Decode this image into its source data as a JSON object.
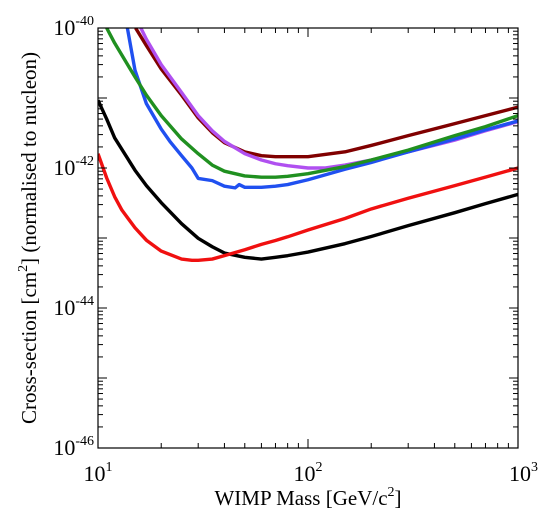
{
  "chart_data": {
    "type": "line",
    "title": "",
    "xlabel_parts": [
      "WIMP Mass [GeV/c",
      "2",
      "]"
    ],
    "ylabel_parts": [
      "Cross-section [cm",
      "2",
      "] (normalised to nucleon)"
    ],
    "x_scale": "log",
    "y_scale": "log",
    "xlim": [
      10,
      1000
    ],
    "ylim": [
      1e-46,
      1e-40
    ],
    "grid": false,
    "legend": "none",
    "x_ticks": [
      {
        "value": 10,
        "base": "10",
        "exp": "1"
      },
      {
        "value": 100,
        "base": "10",
        "exp": "2"
      },
      {
        "value": 1000,
        "base": "10",
        "exp": "3"
      }
    ],
    "y_ticks": [
      {
        "value": 1e-46,
        "base": "10",
        "exp": "-46"
      },
      {
        "value": 1e-44,
        "base": "10",
        "exp": "-44"
      },
      {
        "value": 1e-42,
        "base": "10",
        "exp": "-42"
      },
      {
        "value": 1e-40,
        "base": "10",
        "exp": "-40"
      }
    ],
    "series": [
      {
        "color": "#800000",
        "x": [
          15.1,
          17.0,
          20.0,
          25.0,
          30.0,
          35.0,
          40.0,
          50.0,
          60.0,
          70.0,
          80.0,
          100.0,
          150.0,
          200.0,
          300.0,
          500.0,
          700.0,
          1000.0
        ],
        "y": [
          1e-40,
          5.6e-41,
          2.6e-41,
          1.1e-41,
          5.2e-42,
          3.2e-42,
          2.3e-42,
          1.7e-42,
          1.5e-42,
          1.45e-42,
          1.45e-42,
          1.45e-42,
          1.7e-42,
          2.1e-42,
          2.9e-42,
          4.3e-42,
          5.6e-42,
          7.4e-42
        ]
      },
      {
        "color": "#b050f0",
        "x": [
          16.0,
          17.0,
          20.0,
          25.0,
          30.0,
          35.0,
          40.0,
          50.0,
          60.0,
          70.0,
          80.0,
          100.0,
          120.0,
          150.0,
          200.0,
          300.0,
          500.0,
          700.0,
          1000.0
        ],
        "y": [
          1e-40,
          6.9e-41,
          3e-41,
          1.2e-41,
          5.6e-42,
          3.4e-42,
          2.4e-42,
          1.6e-42,
          1.3e-42,
          1.15e-42,
          1.08e-42,
          1e-42,
          1e-42,
          1.1e-42,
          1.3e-42,
          1.7e-42,
          2.5e-42,
          3.4e-42,
          4.6e-42
        ]
      },
      {
        "color": "#2050f0",
        "x": [
          13.8,
          15.0,
          17.0,
          20.0,
          22.0,
          25.0,
          28.0,
          30.0,
          35.0,
          40.0,
          45.0,
          47.0,
          50.0,
          60.0,
          70.0,
          80.0,
          100.0,
          150.0,
          200.0,
          300.0,
          500.0,
          700.0,
          1000.0
        ],
        "y": [
          1e-40,
          2.5e-41,
          8.3e-42,
          3.6e-42,
          2.4e-42,
          1.5e-42,
          1e-42,
          7.1e-43,
          6.6e-43,
          5.5e-43,
          5.2e-43,
          5.8e-43,
          5.3e-43,
          5.3e-43,
          5.5e-43,
          5.8e-43,
          6.8e-43,
          9.6e-43,
          1.2e-42,
          1.7e-42,
          2.6e-42,
          3.5e-42,
          4.7e-42
        ]
      },
      {
        "color": "#209020",
        "x": [
          11.0,
          12.0,
          15.0,
          17.0,
          20.0,
          25.0,
          30.0,
          35.0,
          40.0,
          50.0,
          60.0,
          70.0,
          80.0,
          100.0,
          150.0,
          200.0,
          300.0,
          500.0,
          700.0,
          1000.0
        ],
        "y": [
          1e-40,
          6.1e-41,
          2e-41,
          1.1e-41,
          5.6e-42,
          2.6e-42,
          1.6e-42,
          1.1e-42,
          9e-43,
          7.7e-43,
          7.4e-43,
          7.4e-43,
          7.6e-43,
          8.3e-43,
          1.05e-42,
          1.3e-42,
          1.8e-42,
          2.9e-42,
          3.9e-42,
          5.6e-42
        ]
      },
      {
        "color": "#000000",
        "x": [
          10.0,
          11.0,
          12.0,
          15.0,
          17.0,
          20.0,
          25.0,
          30.0,
          35.0,
          40.0,
          50.0,
          60.0,
          70.0,
          80.0,
          100.0,
          150.0,
          200.0,
          300.0,
          500.0,
          700.0,
          1000.0
        ],
        "y": [
          9.3e-42,
          5e-42,
          2.7e-42,
          9.3e-43,
          5.6e-43,
          3.2e-43,
          1.6e-43,
          9.9e-44,
          7.5e-44,
          6.1e-44,
          5.3e-44,
          5e-44,
          5.3e-44,
          5.6e-44,
          6.3e-44,
          8.3e-44,
          1.05e-43,
          1.5e-43,
          2.3e-43,
          3.1e-43,
          4.2e-43
        ]
      },
      {
        "color": "#f01010",
        "x": [
          10.0,
          11.0,
          12.0,
          13.0,
          15.0,
          17.0,
          20.0,
          25.0,
          28.0,
          30.0,
          35.0,
          40.0,
          50.0,
          60.0,
          70.0,
          80.0,
          100.0,
          150.0,
          200.0,
          300.0,
          500.0,
          700.0,
          1000.0
        ],
        "y": [
          1.6e-42,
          7.2e-43,
          3.9e-43,
          2.5e-43,
          1.4e-43,
          9.3e-44,
          6.5e-44,
          5e-44,
          4.8e-44,
          4.8e-44,
          5e-44,
          5.6e-44,
          6.8e-44,
          8.1e-44,
          9.2e-44,
          1.04e-43,
          1.3e-43,
          1.9e-43,
          2.6e-43,
          3.7e-43,
          5.6e-43,
          7.4e-43,
          1e-42
        ]
      }
    ]
  }
}
